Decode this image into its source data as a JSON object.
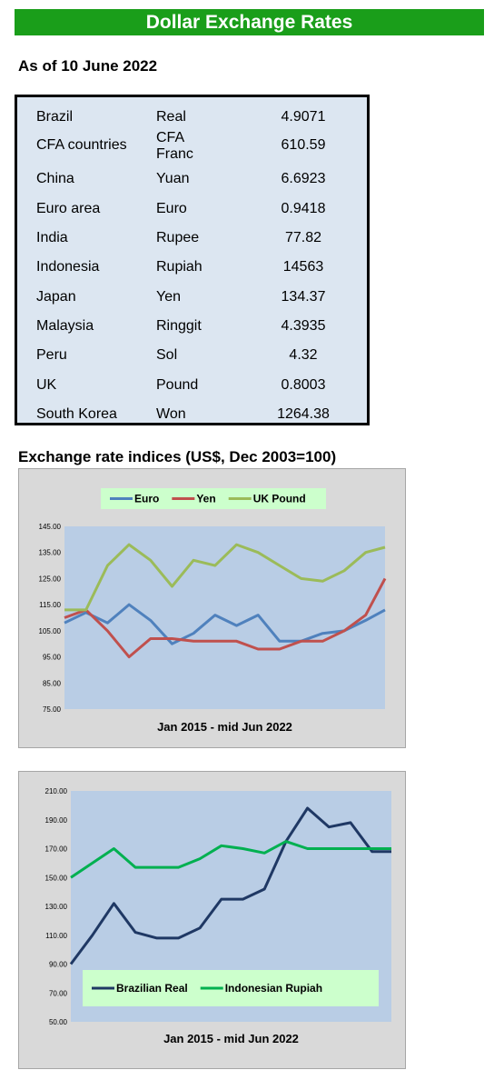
{
  "header": {
    "title": "Dollar Exchange Rates",
    "as_of": "As of 10 June 2022"
  },
  "rates": [
    {
      "country": "Brazil",
      "currency": "Real",
      "value": "4.9071"
    },
    {
      "country": "CFA countries",
      "currency": "CFA Franc",
      "value": "610.59"
    },
    {
      "country": "China",
      "currency": "Yuan",
      "value": "6.6923"
    },
    {
      "country": "Euro area",
      "currency": "Euro",
      "value": "0.9418"
    },
    {
      "country": "India",
      "currency": "Rupee",
      "value": "77.82"
    },
    {
      "country": "Indonesia",
      "currency": "Rupiah",
      "value": "14563"
    },
    {
      "country": "Japan",
      "currency": "Yen",
      "value": "134.37"
    },
    {
      "country": "Malaysia",
      "currency": "Ringgit",
      "value": "4.3935"
    },
    {
      "country": "Peru",
      "currency": "Sol",
      "value": "4.32"
    },
    {
      "country": "UK",
      "currency": "Pound",
      "value": "0.8003"
    },
    {
      "country": "South Korea",
      "currency": "Won",
      "value": "1264.38"
    }
  ],
  "indices": {
    "title": "Exchange rate indices (US$, Dec 2003=100)"
  },
  "chart_data": [
    {
      "type": "line",
      "xlabel": "Jan 2015 - mid Jun 2022",
      "x": [
        2015.0,
        2015.5,
        2016.0,
        2016.5,
        2017.0,
        2017.5,
        2018.0,
        2018.5,
        2019.0,
        2019.5,
        2020.0,
        2020.5,
        2021.0,
        2021.5,
        2022.0,
        2022.45
      ],
      "yticks": [
        "145.00",
        "135.00",
        "125.00",
        "115.00",
        "105.00",
        "95.00",
        "85.00",
        "75.00"
      ],
      "ylim": [
        75,
        145
      ],
      "grid": false,
      "legend_position": "top",
      "series": [
        {
          "name": "Euro",
          "color": "#4f81bd",
          "values": [
            108,
            112,
            108,
            115,
            109,
            100,
            104,
            111,
            107,
            111,
            101,
            101,
            104,
            105,
            109,
            113
          ]
        },
        {
          "name": "Yen",
          "color": "#c0504d",
          "values": [
            110,
            113,
            105,
            95,
            102,
            102,
            101,
            101,
            101,
            98,
            98,
            101,
            101,
            105,
            111,
            125
          ]
        },
        {
          "name": "UK Pound",
          "color": "#9bbb59",
          "values": [
            113,
            113,
            130,
            138,
            132,
            122,
            132,
            130,
            138,
            135,
            130,
            125,
            124,
            128,
            135,
            137
          ]
        }
      ]
    },
    {
      "type": "line",
      "xlabel": "Jan 2015 - mid Jun 2022",
      "x": [
        2015.0,
        2015.5,
        2016.0,
        2016.5,
        2017.0,
        2017.5,
        2018.0,
        2018.5,
        2019.0,
        2019.5,
        2020.0,
        2020.5,
        2021.0,
        2021.5,
        2022.0,
        2022.45
      ],
      "yticks": [
        "210.00",
        "190.00",
        "170.00",
        "150.00",
        "130.00",
        "110.00",
        "90.00",
        "70.00",
        "50.00"
      ],
      "ylim": [
        50,
        210
      ],
      "grid": false,
      "legend_position": "bottom",
      "series": [
        {
          "name": "Brazilian Real",
          "color": "#1f3864",
          "values": [
            90,
            110,
            132,
            112,
            108,
            108,
            115,
            135,
            135,
            142,
            175,
            198,
            185,
            188,
            168,
            168
          ]
        },
        {
          "name": "Indonesian Rupiah",
          "color": "#00b050",
          "values": [
            150,
            160,
            170,
            157,
            157,
            157,
            163,
            172,
            170,
            167,
            175,
            170,
            170,
            170,
            170,
            170
          ]
        }
      ]
    }
  ]
}
